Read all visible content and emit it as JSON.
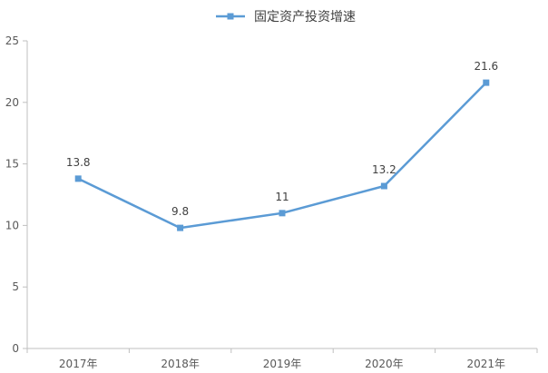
{
  "chart_data": {
    "type": "line",
    "title": "",
    "xlabel": "",
    "ylabel": "",
    "categories": [
      "2017年",
      "2018年",
      "2019年",
      "2020年",
      "2021年"
    ],
    "series": [
      {
        "name": "固定资产投资增速",
        "values": [
          13.8,
          9.8,
          11,
          13.2,
          21.6
        ],
        "color": "#5b9bd5"
      }
    ],
    "data_labels": [
      "13.8",
      "9.8",
      "11",
      "13.2",
      "21.6"
    ],
    "ylim": [
      0,
      25
    ],
    "yticks": [
      0,
      5,
      10,
      15,
      20,
      25
    ],
    "grid": false,
    "legend_position": "top-center"
  },
  "colors": {
    "series": "#5b9bd5",
    "axis": "#bfbfbf",
    "text": "#404040"
  }
}
